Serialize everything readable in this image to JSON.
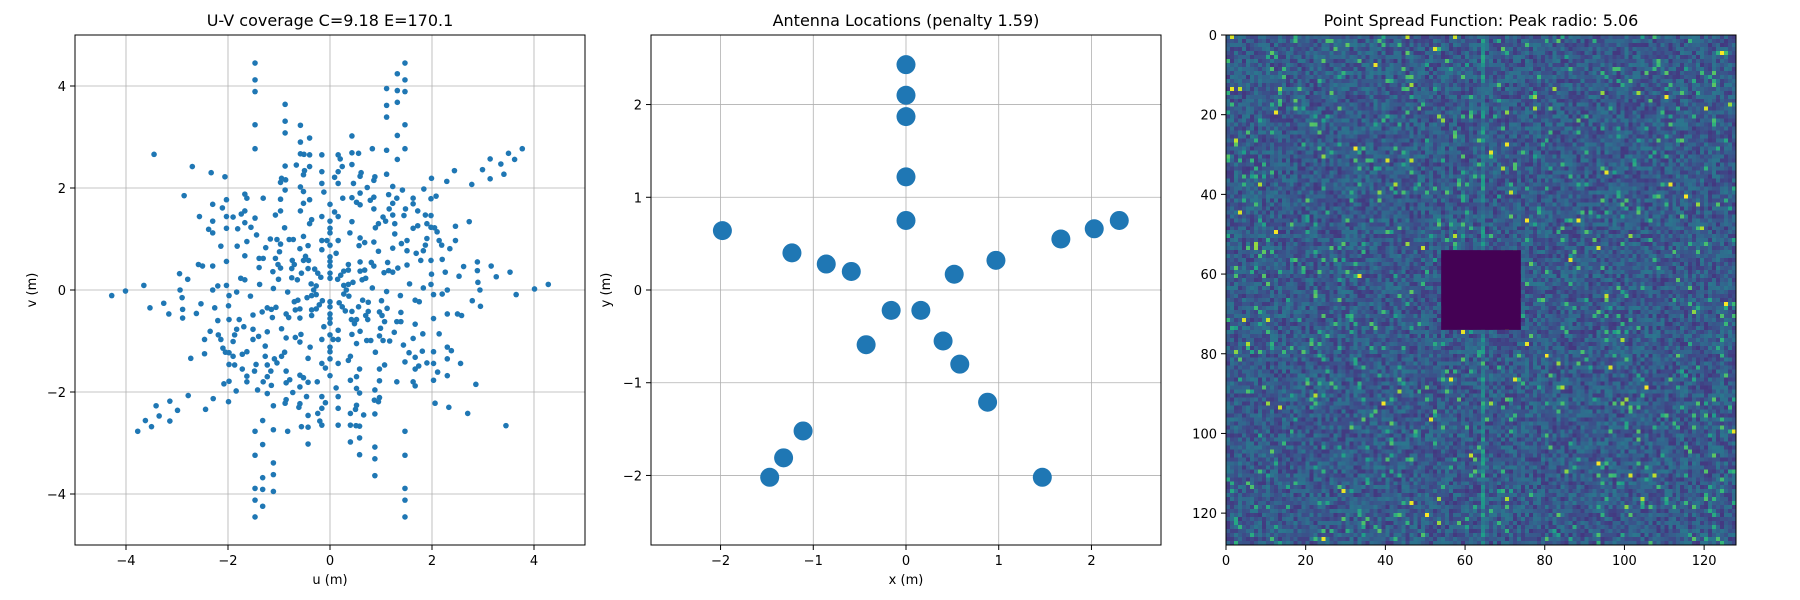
{
  "chart_data": [
    {
      "type": "scatter",
      "title": "U-V coverage C=9.18 E=170.1",
      "xlabel": "u (m)",
      "ylabel": "v (m)",
      "xlim": [
        -5,
        5
      ],
      "ylim": [
        -5,
        5
      ],
      "xticks": [
        -4,
        -2,
        0,
        2,
        4
      ],
      "yticks": [
        -4,
        -2,
        0,
        2,
        4
      ],
      "xtick_labels": [
        "−4",
        "−2",
        "0",
        "2",
        "4"
      ],
      "ytick_labels": [
        "−4",
        "−2",
        "0",
        "2",
        "4"
      ],
      "grid": true,
      "marker_color": "#1f77b4",
      "point_count": 552,
      "symmetry": "point-symmetric (u,v) and (-u,-v)"
    },
    {
      "type": "scatter",
      "title": "Antenna Locations (penalty 1.59)",
      "xlabel": "x (m)",
      "ylabel": "y (m)",
      "xlim": [
        -2.75,
        2.75
      ],
      "ylim": [
        -2.75,
        2.75
      ],
      "xticks": [
        -2,
        -1,
        0,
        1,
        2
      ],
      "yticks": [
        -2,
        -1,
        0,
        1,
        2
      ],
      "xtick_labels": [
        "−2",
        "−1",
        "0",
        "1",
        "2"
      ],
      "ytick_labels": [
        "−2",
        "−1",
        "0",
        "1",
        "2"
      ],
      "grid": true,
      "marker_color": "#1f77b4",
      "points": [
        [
          0.0,
          2.43
        ],
        [
          0.0,
          2.1
        ],
        [
          0.0,
          1.87
        ],
        [
          0.0,
          1.22
        ],
        [
          0.0,
          0.75
        ],
        [
          -1.98,
          0.64
        ],
        [
          -1.23,
          0.4
        ],
        [
          -0.86,
          0.28
        ],
        [
          -0.59,
          0.2
        ],
        [
          -0.16,
          -0.22
        ],
        [
          0.16,
          -0.22
        ],
        [
          0.52,
          0.17
        ],
        [
          0.97,
          0.32
        ],
        [
          1.67,
          0.55
        ],
        [
          2.03,
          0.66
        ],
        [
          2.3,
          0.75
        ],
        [
          -0.43,
          -0.59
        ],
        [
          0.4,
          -0.55
        ],
        [
          0.58,
          -0.8
        ],
        [
          0.88,
          -1.21
        ],
        [
          1.47,
          -2.02
        ],
        [
          -1.11,
          -1.52
        ],
        [
          -1.32,
          -1.81
        ],
        [
          -1.47,
          -2.02
        ]
      ]
    },
    {
      "type": "heatmap",
      "title": "Point Spread Function: Peak radio: 5.06",
      "xlim": [
        0,
        128
      ],
      "ylim": [
        128,
        0
      ],
      "xticks": [
        0,
        20,
        40,
        60,
        80,
        100,
        120
      ],
      "yticks": [
        0,
        20,
        40,
        60,
        80,
        100,
        120
      ],
      "xtick_labels": [
        "0",
        "20",
        "40",
        "60",
        "80",
        "100",
        "120"
      ],
      "ytick_labels": [
        "0",
        "20",
        "40",
        "60",
        "80",
        "100",
        "120"
      ],
      "grid": false,
      "colormap": "viridis",
      "size": [
        128,
        128
      ],
      "masked_center": [
        54,
        74
      ],
      "background_color": "#3b528b",
      "mask_color": "#440154",
      "bright_color": "#fde725"
    }
  ]
}
